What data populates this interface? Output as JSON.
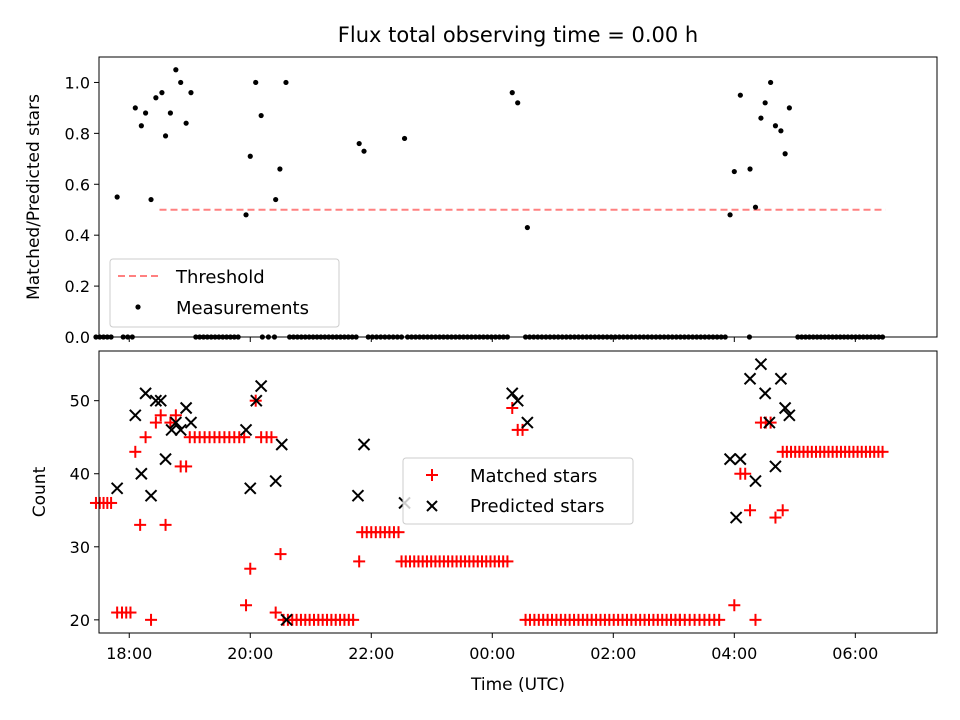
{
  "chart_data": [
    {
      "type": "scatter",
      "title": "Flux total observing time = 0.00 h",
      "xlabel": "",
      "ylabel": "Matched/Predicted stars",
      "xlim": [
        -0.5,
        13.35
      ],
      "ylim": [
        0.0,
        1.1
      ],
      "yticks": [
        0.0,
        0.2,
        0.4,
        0.6,
        0.8,
        1.0
      ],
      "ytick_labels": [
        "0.0",
        "0.2",
        "0.4",
        "0.6",
        "0.8",
        "1.0"
      ],
      "legend_position": "lower-left",
      "threshold": {
        "name": "Threshold",
        "value": 0.5,
        "x_range": [
          0.5,
          12.5
        ],
        "color": "#ff8080"
      },
      "measurements": {
        "name": "Measurements",
        "color": "#000000",
        "nonzero": [
          [
            -0.2,
            0.55
          ],
          [
            0.1,
            0.9
          ],
          [
            0.2,
            0.83
          ],
          [
            0.27,
            0.88
          ],
          [
            0.36,
            0.54
          ],
          [
            0.44,
            0.94
          ],
          [
            0.54,
            0.96
          ],
          [
            0.6,
            0.79
          ],
          [
            0.68,
            0.88
          ],
          [
            0.77,
            1.05
          ],
          [
            0.85,
            1.0
          ],
          [
            0.94,
            0.84
          ],
          [
            1.02,
            0.96
          ],
          [
            1.93,
            0.48
          ],
          [
            2.0,
            0.71
          ],
          [
            2.09,
            1.0
          ],
          [
            2.18,
            0.87
          ],
          [
            2.42,
            0.54
          ],
          [
            2.49,
            0.66
          ],
          [
            2.59,
            1.0
          ],
          [
            3.8,
            0.76
          ],
          [
            3.88,
            0.73
          ],
          [
            4.55,
            0.78
          ],
          [
            6.33,
            0.96
          ],
          [
            6.42,
            0.92
          ],
          [
            6.58,
            0.43
          ],
          [
            9.93,
            0.48
          ],
          [
            10.0,
            0.65
          ],
          [
            10.1,
            0.95
          ],
          [
            10.26,
            0.66
          ],
          [
            10.35,
            0.51
          ],
          [
            10.44,
            0.86
          ],
          [
            10.51,
            0.92
          ],
          [
            10.6,
            1.0
          ],
          [
            10.68,
            0.83
          ],
          [
            10.77,
            0.81
          ],
          [
            10.84,
            0.72
          ],
          [
            10.91,
            0.9
          ]
        ],
        "zero_ranges": [
          [
            -0.55,
            -0.3,
            5
          ],
          [
            -0.1,
            0.05,
            3
          ],
          [
            1.1,
            1.8,
            12
          ],
          [
            2.2,
            2.4,
            3
          ],
          [
            2.65,
            3.75,
            18
          ],
          [
            3.95,
            4.5,
            9
          ],
          [
            4.6,
            6.25,
            26
          ],
          [
            6.55,
            9.85,
            50
          ],
          [
            10.25,
            10.3,
            1
          ],
          [
            11.05,
            12.45,
            23
          ]
        ]
      }
    },
    {
      "type": "scatter",
      "title": "",
      "xlabel": "Time (UTC)",
      "ylabel": "Count",
      "xlim": [
        -0.5,
        13.35
      ],
      "ylim": [
        18.2,
        56.8
      ],
      "yticks": [
        20,
        30,
        40,
        50
      ],
      "ytick_labels": [
        "20",
        "30",
        "40",
        "50"
      ],
      "xticks": [
        0,
        2,
        4,
        6,
        8,
        10,
        12
      ],
      "xtick_labels": [
        "18:00",
        "20:00",
        "22:00",
        "00:00",
        "02:00",
        "04:00",
        "06:00"
      ],
      "legend_position": "center",
      "matched": {
        "name": "Matched stars",
        "color": "#ff0000",
        "points": [
          [
            -0.2,
            21
          ],
          [
            -0.12,
            21
          ],
          [
            -0.05,
            21
          ],
          [
            0.02,
            21
          ],
          [
            0.1,
            43
          ],
          [
            0.18,
            33
          ],
          [
            0.27,
            45
          ],
          [
            0.36,
            20
          ],
          [
            0.44,
            47
          ],
          [
            0.52,
            48
          ],
          [
            0.6,
            33
          ],
          [
            0.68,
            47
          ],
          [
            0.77,
            48
          ],
          [
            0.85,
            41
          ],
          [
            0.94,
            41
          ],
          [
            1.93,
            22
          ],
          [
            2.0,
            27
          ],
          [
            2.09,
            50
          ],
          [
            2.18,
            45
          ],
          [
            2.27,
            45
          ],
          [
            2.35,
            45
          ],
          [
            2.42,
            21
          ],
          [
            2.5,
            29
          ],
          [
            3.8,
            28
          ],
          [
            6.33,
            49
          ],
          [
            6.42,
            46
          ],
          [
            6.5,
            46
          ],
          [
            10.0,
            22
          ],
          [
            10.1,
            40
          ],
          [
            10.18,
            40
          ],
          [
            10.26,
            35
          ],
          [
            10.35,
            20
          ],
          [
            10.44,
            47
          ],
          [
            10.52,
            47
          ],
          [
            10.6,
            47
          ],
          [
            10.68,
            34
          ],
          [
            10.8,
            35
          ]
        ],
        "runs": [
          [
            -0.55,
            -0.3,
            36,
            5
          ],
          [
            1.0,
            1.9,
            45,
            12
          ],
          [
            2.55,
            3.7,
            20,
            17
          ],
          [
            3.85,
            4.45,
            32,
            9
          ],
          [
            4.5,
            6.25,
            28,
            26
          ],
          [
            6.55,
            9.1,
            20,
            36
          ],
          [
            9.1,
            9.75,
            20,
            9
          ],
          [
            10.8,
            12.45,
            43,
            25
          ]
        ]
      },
      "predicted": {
        "name": "Predicted stars",
        "color": "#000000",
        "points": [
          [
            -0.2,
            38
          ],
          [
            0.1,
            48
          ],
          [
            0.2,
            40
          ],
          [
            0.27,
            51
          ],
          [
            0.36,
            37
          ],
          [
            0.44,
            50
          ],
          [
            0.52,
            50
          ],
          [
            0.6,
            42
          ],
          [
            0.7,
            46
          ],
          [
            0.77,
            47
          ],
          [
            0.85,
            46
          ],
          [
            0.94,
            49
          ],
          [
            1.02,
            47
          ],
          [
            1.93,
            46
          ],
          [
            2.0,
            38
          ],
          [
            2.1,
            50
          ],
          [
            2.18,
            52
          ],
          [
            2.42,
            39
          ],
          [
            2.52,
            44
          ],
          [
            2.6,
            20
          ],
          [
            3.78,
            37
          ],
          [
            3.88,
            44
          ],
          [
            4.55,
            36
          ],
          [
            6.33,
            51
          ],
          [
            6.42,
            50
          ],
          [
            6.58,
            47
          ],
          [
            9.93,
            42
          ],
          [
            10.03,
            34
          ],
          [
            10.1,
            42
          ],
          [
            10.26,
            53
          ],
          [
            10.35,
            39
          ],
          [
            10.44,
            55
          ],
          [
            10.51,
            51
          ],
          [
            10.58,
            47
          ],
          [
            10.68,
            41
          ],
          [
            10.77,
            53
          ],
          [
            10.84,
            49
          ],
          [
            10.91,
            48
          ]
        ]
      }
    }
  ]
}
